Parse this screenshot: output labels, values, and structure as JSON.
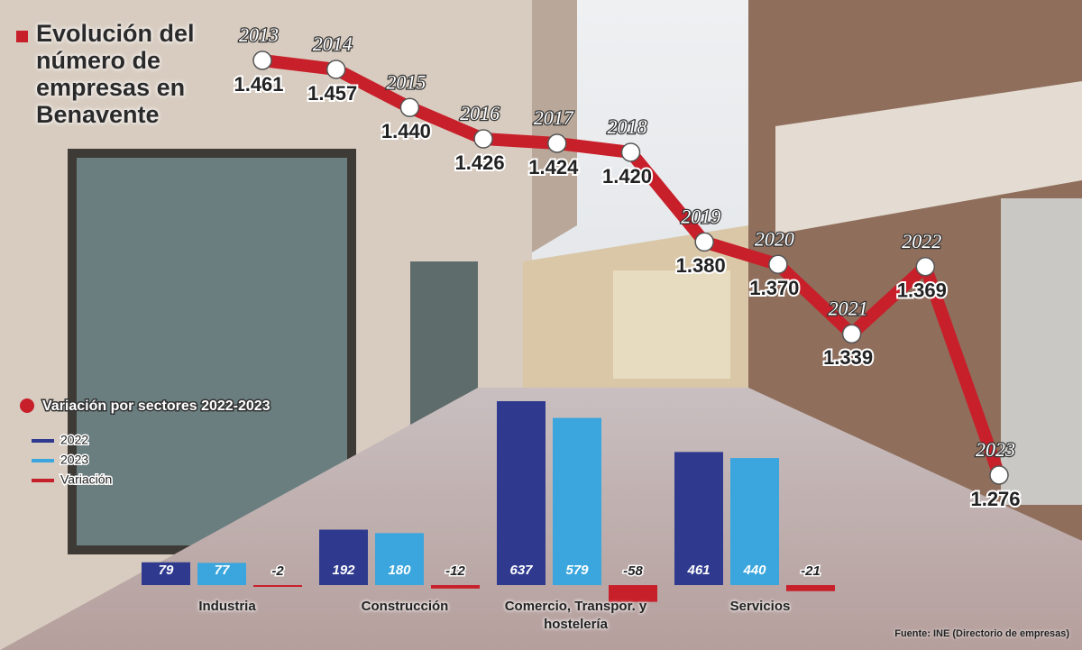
{
  "chart_data": [
    {
      "type": "line",
      "title": "Evolución del número de empresas en Benavente",
      "x": [
        2013,
        2014,
        2015,
        2016,
        2017,
        2018,
        2019,
        2020,
        2021,
        2022,
        2023
      ],
      "values": [
        1461,
        1457,
        1440,
        1426,
        1424,
        1420,
        1380,
        1370,
        1339,
        1369,
        1276
      ],
      "value_labels": [
        "1.461",
        "1.457",
        "1.440",
        "1.426",
        "1.424",
        "1.420",
        "1.380",
        "1.370",
        "1.339",
        "1.369",
        "1.276"
      ],
      "color": "#c8202a"
    },
    {
      "type": "bar",
      "title": "Variación por sectores 2022-2023",
      "categories": [
        "Industria",
        "Construcción",
        "Comercio, Transpor. y hostelería",
        "Servicios"
      ],
      "series": [
        {
          "name": "2022",
          "color": "#2f3a8f",
          "values": [
            79,
            192,
            637,
            461
          ]
        },
        {
          "name": "2023",
          "color": "#3aa6dd",
          "values": [
            77,
            180,
            579,
            440
          ]
        },
        {
          "name": "Variación",
          "color": "#c8202a",
          "values": [
            -2,
            -12,
            -58,
            -21
          ]
        }
      ]
    }
  ],
  "source": "Fuente: INE (Directorio de empresas)"
}
